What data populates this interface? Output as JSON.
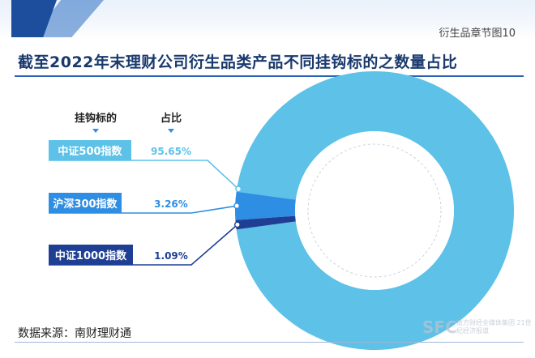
{
  "header": {
    "section_tag": "衍生品章节图10"
  },
  "source": "数据来源：南财理财通",
  "watermark": {
    "logo": "SFC",
    "text": "南方财经全媒体集团 21世纪经济报道"
  },
  "colors": {
    "segment_1": "#5dc1e8",
    "segment_2": "#2e8ee3",
    "segment_3": "#1f3f95",
    "title": "#1a3a6e"
  },
  "chart_data": {
    "type": "pie",
    "style": "donut",
    "title": "截至2022年末理财公司衍生品类产品不同挂钩标的之数量占比",
    "column_headers": [
      "挂钩标的",
      "占比"
    ],
    "categories": [
      "中证500指数",
      "沪深300指数",
      "中证1000指数"
    ],
    "values": [
      95.65,
      3.26,
      1.09
    ],
    "value_labels": [
      "95.65%",
      "3.26%",
      "1.09%"
    ],
    "unit": "%"
  }
}
